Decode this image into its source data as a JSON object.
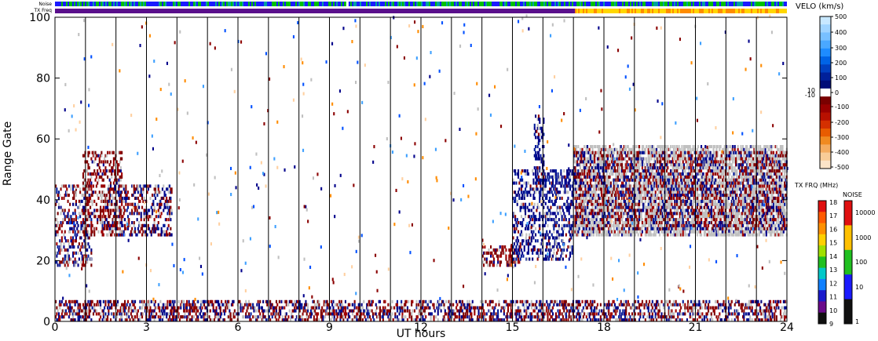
{
  "chart_data": {
    "type": "heatmap",
    "top_strip_labels": [
      "Noise",
      "TX Freq"
    ],
    "xlabel": "UT hours",
    "ylabel": "Range Gate",
    "xlim": [
      0,
      24
    ],
    "ylim": [
      0,
      100
    ],
    "x_ticks": [
      "0",
      "3",
      "6",
      "9",
      "12",
      "15",
      "18",
      "21",
      "24"
    ],
    "y_ticks": [
      "0",
      "20",
      "40",
      "60",
      "80",
      "100"
    ],
    "velocity_colorbar": {
      "title": "VELO (km/s)",
      "ticks": [
        "500",
        "400",
        "300",
        "200",
        "100",
        "10",
        "0",
        "-10",
        "-100",
        "-200",
        "-300",
        "-400",
        "-500"
      ],
      "range": [
        -500,
        500
      ]
    },
    "txfreq_colorbar": {
      "title": "TX FRQ (MHz)",
      "ticks": [
        "18",
        "17",
        "16",
        "15",
        "14",
        "13",
        "12",
        "11",
        "10",
        "9"
      ]
    },
    "noise_colorbar": {
      "title": "NOISE",
      "ticks": [
        "10000",
        "1000",
        "100",
        "10",
        "1"
      ]
    },
    "scan_boundaries_hours": [
      1,
      2,
      3,
      4,
      5,
      6,
      7,
      8,
      9,
      10,
      11,
      12,
      13,
      14,
      15,
      16,
      17,
      18,
      19,
      20,
      21,
      22,
      23
    ],
    "echo_regions": [
      {
        "name": "early-mixed",
        "x": [
          0.0,
          1.2
        ],
        "y": [
          18,
          45
        ],
        "type": "mixed"
      },
      {
        "name": "rising-red",
        "x": [
          0.9,
          2.2
        ],
        "y": [
          28,
          56
        ],
        "type": "negative"
      },
      {
        "name": "descending-band",
        "x": [
          1.5,
          3.8
        ],
        "y": [
          28,
          45
        ],
        "type": "mixed"
      },
      {
        "name": "ground-band",
        "x": [
          0.0,
          24.0
        ],
        "y": [
          0,
          7
        ],
        "type": "mixed"
      },
      {
        "name": "afternoon-spot",
        "x": [
          14.0,
          15.2
        ],
        "y": [
          18,
          25
        ],
        "type": "negative"
      },
      {
        "name": "rising-blue",
        "x": [
          15.0,
          17.0
        ],
        "y": [
          20,
          50
        ],
        "type": "positive"
      },
      {
        "name": "spike-16ut",
        "x": [
          15.7,
          16.0
        ],
        "y": [
          45,
          68
        ],
        "type": "positive"
      },
      {
        "name": "late-ground-scatter",
        "x": [
          17.0,
          24.0
        ],
        "y": [
          28,
          58
        ],
        "type": "ground"
      },
      {
        "name": "late-mixed",
        "x": [
          17.0,
          24.0
        ],
        "y": [
          30,
          56
        ],
        "type": "mixed"
      }
    ],
    "tx_freq_change_hour": 17
  }
}
